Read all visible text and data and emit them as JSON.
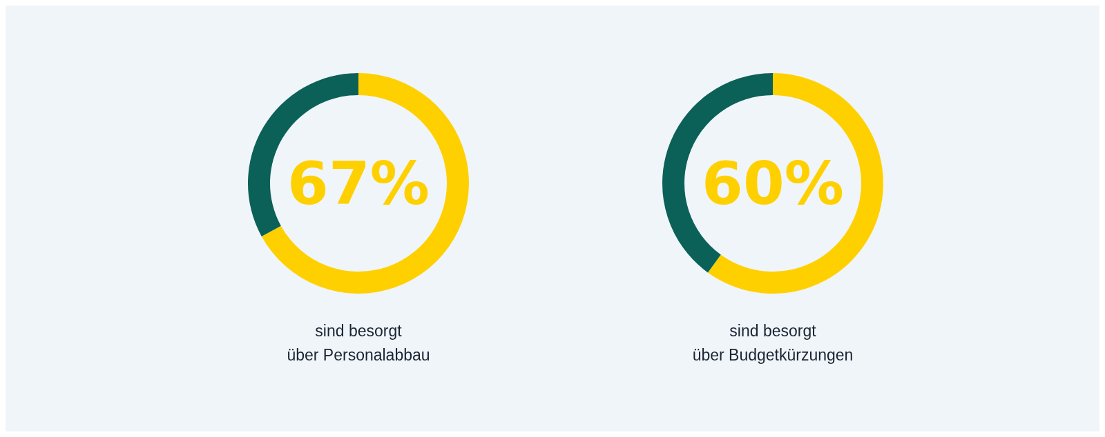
{
  "chart_data": [
    {
      "type": "donut",
      "title": "sind besorgt\nüber Personalabbau",
      "categories": [
        null,
        null
      ],
      "values": [
        67,
        33
      ],
      "colors": [
        "#ffd000",
        "#0b6158"
      ],
      "value_labels": [
        "67%",
        null
      ]
    },
    {
      "type": "donut",
      "title": "sind besorgt\nüber Budgetkürzungen",
      "categories": [
        null,
        null
      ],
      "values": [
        60,
        40
      ],
      "colors": [
        "#ffd000",
        "#0b6158"
      ],
      "value_labels": [
        "60%",
        null
      ]
    }
  ]
}
